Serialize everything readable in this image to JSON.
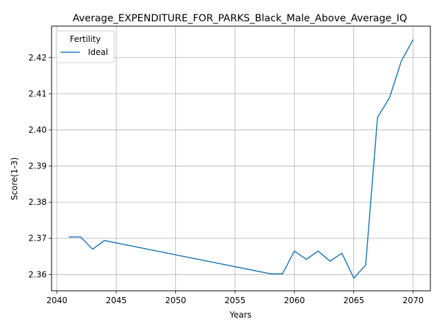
{
  "chart_data": {
    "type": "line",
    "title": "Average_EXPENDITURE_FOR_PARKS_Black_Male_Above_Average_IQ",
    "xlabel": "Years",
    "ylabel": "Score(1-3)",
    "xlim": [
      2039.55,
      2071.45
    ],
    "ylim": [
      2.3555,
      2.4287
    ],
    "xticks": [
      2040,
      2045,
      2050,
      2055,
      2060,
      2065,
      2070
    ],
    "yticks": [
      2.36,
      2.37,
      2.38,
      2.39,
      2.4,
      2.41,
      2.42
    ],
    "ytick_labels": [
      "2.36",
      "2.37",
      "2.38",
      "2.39",
      "2.40",
      "2.41",
      "2.42"
    ],
    "grid": true,
    "legend": {
      "title": "Fertility",
      "placement": "top-left"
    },
    "series": [
      {
        "name": "Ideal",
        "color": "#1f77b4",
        "x": [
          2041,
          2042,
          2043,
          2044,
          2058,
          2059,
          2060,
          2061,
          2062,
          2063,
          2064,
          2065,
          2066,
          2067,
          2068,
          2069,
          2070
        ],
        "y": [
          2.3704,
          2.3704,
          2.367,
          2.3694,
          2.3602,
          2.3602,
          2.3665,
          2.3642,
          2.3665,
          2.3637,
          2.3659,
          2.359,
          2.3626,
          2.4035,
          2.4088,
          2.419,
          2.425
        ]
      }
    ]
  }
}
